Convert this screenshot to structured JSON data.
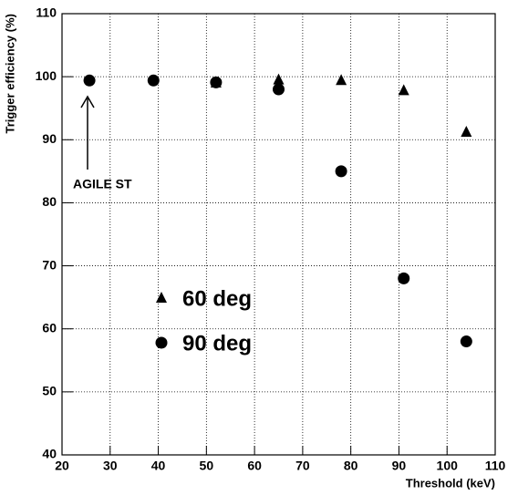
{
  "chart_data": {
    "type": "scatter",
    "xlabel": "Threshold (keV)",
    "ylabel": "Trigger efficiency (%)",
    "annotation": "AGILE ST",
    "series": [
      {
        "name": "60 deg",
        "marker": "triangle",
        "color": "#000000",
        "x": [
          52,
          65,
          78,
          91,
          104
        ],
        "values": [
          99.0,
          99.5,
          99.4,
          97.8,
          91.2
        ]
      },
      {
        "name": "90 deg",
        "marker": "circle",
        "color": "#000000",
        "x": [
          25.7,
          39,
          52,
          65,
          78,
          91,
          104
        ],
        "values": [
          99.4,
          99.4,
          99.1,
          98.0,
          85.0,
          68.0,
          58.0
        ]
      }
    ],
    "xlim": [
      20,
      110
    ],
    "xticks": [
      20,
      30,
      40,
      50,
      60,
      70,
      80,
      90,
      100,
      110
    ],
    "ylim": [
      40,
      110
    ],
    "yticks": [
      40,
      50,
      60,
      70,
      80,
      90,
      100,
      110
    ],
    "grid": true
  }
}
